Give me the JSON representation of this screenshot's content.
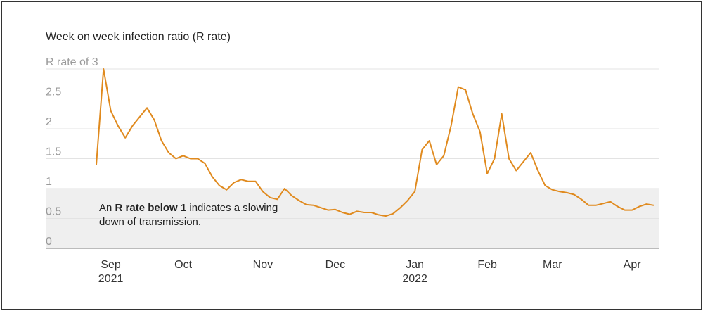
{
  "chart_data": {
    "type": "line",
    "title": "Week on week infection ratio (R rate)",
    "categories": [
      null,
      null,
      "Sep",
      null,
      null,
      null,
      null,
      null,
      null,
      null,
      null,
      null,
      "Oct",
      null,
      null,
      null,
      null,
      null,
      null,
      null,
      null,
      null,
      null,
      "Nov",
      null,
      null,
      null,
      null,
      null,
      null,
      null,
      null,
      null,
      "Dec",
      null,
      null,
      null,
      null,
      null,
      null,
      null,
      null,
      null,
      null,
      "Jan",
      null,
      null,
      null,
      null,
      null,
      null,
      null,
      null,
      null,
      "Feb",
      null,
      null,
      null,
      null,
      null,
      null,
      null,
      null,
      "Mar",
      null,
      null,
      null,
      null,
      null,
      null,
      null,
      null,
      null,
      null,
      "Apr",
      null,
      null,
      null
    ],
    "category_sublabels": [
      null,
      null,
      "2021",
      null,
      null,
      null,
      null,
      null,
      null,
      null,
      null,
      null,
      null,
      null,
      null,
      null,
      null,
      null,
      null,
      null,
      null,
      null,
      null,
      null,
      null,
      null,
      null,
      null,
      null,
      null,
      null,
      null,
      null,
      null,
      null,
      null,
      null,
      null,
      null,
      null,
      null,
      null,
      null,
      null,
      "2022",
      null,
      null,
      null,
      null,
      null,
      null,
      null,
      null,
      null,
      null,
      null,
      null,
      null,
      null,
      null,
      null,
      null,
      null,
      null,
      null,
      null,
      null,
      null,
      null,
      null,
      null,
      null,
      null,
      null,
      null,
      null,
      null,
      null
    ],
    "series": [
      {
        "name": "R rate",
        "color": "#e08a1e",
        "values": [
          1.4,
          3.0,
          2.3,
          2.05,
          1.85,
          2.05,
          2.2,
          2.35,
          2.15,
          1.8,
          1.6,
          1.5,
          1.55,
          1.5,
          1.5,
          1.42,
          1.2,
          1.05,
          0.98,
          1.1,
          1.15,
          1.12,
          1.12,
          0.95,
          0.85,
          0.82,
          1.0,
          0.88,
          0.8,
          0.73,
          0.72,
          0.68,
          0.64,
          0.65,
          0.6,
          0.57,
          0.62,
          0.6,
          0.6,
          0.56,
          0.54,
          0.58,
          0.68,
          0.8,
          0.95,
          1.65,
          1.8,
          1.4,
          1.55,
          2.05,
          2.7,
          2.65,
          2.25,
          1.95,
          1.25,
          1.5,
          2.25,
          1.5,
          1.3,
          1.45,
          1.6,
          1.3,
          1.05,
          0.98,
          0.95,
          0.93,
          0.9,
          0.82,
          0.72,
          0.72,
          0.75,
          0.78,
          0.7,
          0.64,
          0.64,
          0.7,
          0.74,
          0.72
        ]
      }
    ],
    "ylim": [
      0,
      3
    ],
    "yticks": [
      0,
      0.5,
      1,
      1.5,
      2,
      2.5,
      {
        "value": 3,
        "label": "R rate of 3"
      }
    ],
    "grid": true,
    "shaded_band": [
      0,
      1
    ],
    "annotation": {
      "line1": [
        {
          "text": "An ",
          "bold": false
        },
        {
          "text": "R rate below 1",
          "bold": true
        },
        {
          "text": " indicates a slowing",
          "bold": false
        }
      ],
      "line2": "down of transmission."
    }
  }
}
